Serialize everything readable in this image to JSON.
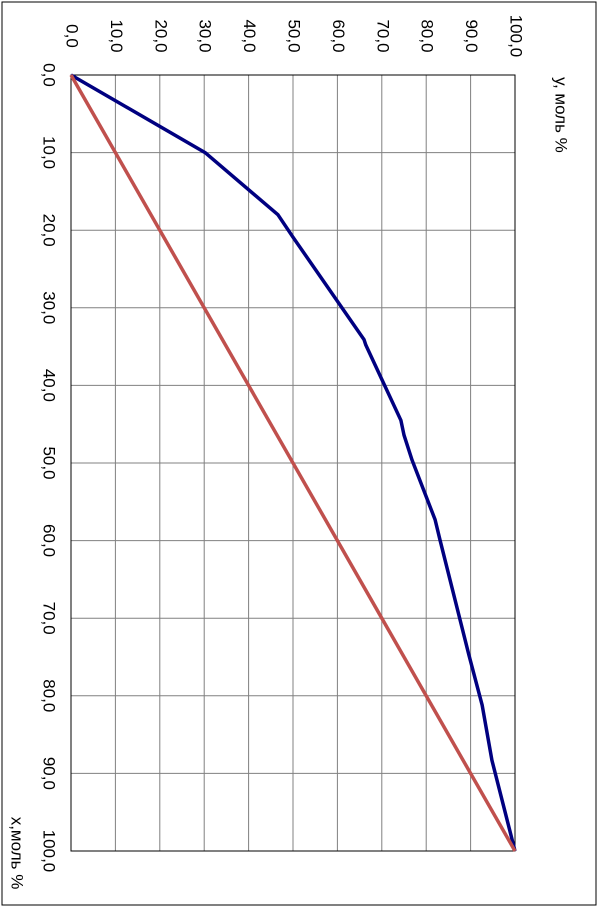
{
  "chart_data": {
    "type": "line",
    "x_label": "х,моль %",
    "y_label": "у, моль %",
    "xlim": [
      0,
      100
    ],
    "ylim": [
      0,
      100
    ],
    "xticks": [
      {
        "value": 0,
        "label": "0,0"
      },
      {
        "value": 10,
        "label": "10,0"
      },
      {
        "value": 20,
        "label": "20,0"
      },
      {
        "value": 30,
        "label": "30,0"
      },
      {
        "value": 40,
        "label": "40,0"
      },
      {
        "value": 50,
        "label": "50,0"
      },
      {
        "value": 60,
        "label": "60,0"
      },
      {
        "value": 70,
        "label": "70,0"
      },
      {
        "value": 80,
        "label": "80,0"
      },
      {
        "value": 90,
        "label": "90,0"
      },
      {
        "value": 100,
        "label": "100,0"
      }
    ],
    "yticks": [
      {
        "value": 0,
        "label": "0,0"
      },
      {
        "value": 10,
        "label": "10,0"
      },
      {
        "value": 20,
        "label": "20,0"
      },
      {
        "value": 30,
        "label": "30,0"
      },
      {
        "value": 40,
        "label": "40,0"
      },
      {
        "value": 50,
        "label": "50,0"
      },
      {
        "value": 60,
        "label": "60,0"
      },
      {
        "value": 70,
        "label": "70,0"
      },
      {
        "value": 80,
        "label": "80,0"
      },
      {
        "value": 90,
        "label": "90,0"
      },
      {
        "value": 100,
        "label": "100,0"
      }
    ],
    "grid": true,
    "rotation": 90,
    "series": [
      {
        "color": "#000080",
        "x": [
          0,
          10,
          18,
          20.9,
          34.1,
          34.8,
          44.5,
          46.4,
          49.6,
          57.3,
          59.9,
          74.7,
          81.2,
          88.3,
          100
        ],
        "values": [
          0,
          30.2,
          46.6,
          50,
          66,
          66.4,
          74.3,
          75,
          76.8,
          82,
          83.1,
          89.6,
          92.6,
          94.8,
          100
        ]
      },
      {
        "color": "#c0504d",
        "x": [
          0,
          100
        ],
        "values": [
          0,
          100
        ]
      }
    ]
  }
}
